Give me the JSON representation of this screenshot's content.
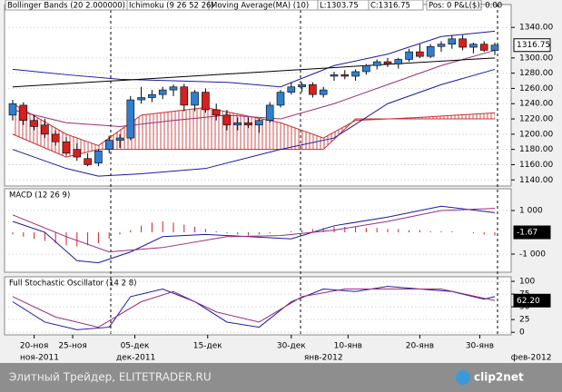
{
  "header": [
    "Bollinger Bands (20 2.000000)",
    "Ichimoku (9 26 52 26)",
    "Moving Average(MA) (10)",
    "L:1303.75",
    "C:1316.75",
    "Pos: 0 P&L($): 0.00"
  ],
  "footer": {
    "source": "Элитный Трейдер, ELITETRADER.RU",
    "logo": "clip2net"
  },
  "x_axis": {
    "ticks": [
      {
        "value": 2,
        "label": "20-ноя"
      },
      {
        "value": 5.6,
        "label": "25-ноя"
      },
      {
        "value": 11.4,
        "label": "05-дек"
      },
      {
        "value": 18.2,
        "label": "15-дек"
      },
      {
        "value": 26,
        "label": "30-дек"
      },
      {
        "value": 31.3,
        "label": "10-янв"
      },
      {
        "value": 38,
        "label": "20-янв"
      },
      {
        "value": 43.6,
        "label": "30-янв"
      }
    ],
    "months": [
      {
        "value": 2.5,
        "label": "ноя-2011"
      },
      {
        "value": 11.5,
        "label": "дек-2011"
      },
      {
        "value": 29,
        "label": "янв-2012"
      },
      {
        "value": 48.4,
        "label": "фев-2012"
      }
    ]
  },
  "chart_data": [
    {
      "type": "candlestick",
      "ylim": [
        1132,
        1370
      ],
      "yticks": [
        {
          "value": 1140,
          "label": "1140.00"
        },
        {
          "value": 1160,
          "label": "1160.00"
        },
        {
          "value": 1180,
          "label": "1180.00"
        },
        {
          "value": 1200,
          "label": "1200.00"
        },
        {
          "value": 1220,
          "label": "1220.00"
        },
        {
          "value": 1240,
          "label": "1240.00"
        },
        {
          "value": 1260,
          "label": "1260.00"
        },
        {
          "value": 1280,
          "label": "1280.00"
        },
        {
          "value": 1300,
          "label": "1300.00"
        },
        {
          "value": 1340,
          "label": "1340.00"
        }
      ],
      "grid": true,
      "up_color": "#2f7fd0",
      "down_color": "#d62020",
      "open": [
        1225,
        1238,
        1218,
        1212,
        1200,
        1190,
        1180,
        1168,
        1162,
        1180,
        1192,
        1195,
        1245,
        1248,
        1252,
        1258,
        1262,
        1238,
        1255,
        1232,
        1225,
        1212,
        1215,
        1212,
        1218,
        1238,
        1255,
        1262,
        1265,
        1252,
        1276,
        1278,
        1276,
        1282,
        1290,
        1295,
        1292,
        1298,
        1308,
        1302,
        1315,
        1318,
        1325,
        1314,
        1318,
        1310
      ],
      "high": [
        1245,
        1242,
        1225,
        1220,
        1205,
        1196,
        1188,
        1175,
        1180,
        1198,
        1200,
        1250,
        1262,
        1258,
        1262,
        1265,
        1266,
        1258,
        1260,
        1240,
        1232,
        1222,
        1222,
        1220,
        1242,
        1258,
        1268,
        1268,
        1268,
        1262,
        1282,
        1284,
        1285,
        1292,
        1298,
        1300,
        1300,
        1312,
        1318,
        1318,
        1322,
        1330,
        1330,
        1320,
        1322,
        1320
      ],
      "low": [
        1218,
        1212,
        1205,
        1195,
        1185,
        1172,
        1165,
        1158,
        1158,
        1175,
        1182,
        1192,
        1240,
        1242,
        1246,
        1250,
        1230,
        1230,
        1228,
        1218,
        1205,
        1205,
        1208,
        1202,
        1215,
        1235,
        1252,
        1255,
        1248,
        1248,
        1270,
        1272,
        1270,
        1278,
        1285,
        1288,
        1286,
        1295,
        1300,
        1300,
        1308,
        1312,
        1310,
        1306,
        1308,
        1303.75
      ],
      "close": [
        1240,
        1218,
        1210,
        1200,
        1190,
        1175,
        1170,
        1160,
        1178,
        1192,
        1195,
        1245,
        1248,
        1252,
        1258,
        1262,
        1238,
        1255,
        1232,
        1225,
        1212,
        1215,
        1212,
        1218,
        1238,
        1255,
        1262,
        1265,
        1252,
        1258,
        1278,
        1276,
        1282,
        1290,
        1295,
        1292,
        1298,
        1308,
        1302,
        1315,
        1318,
        1325,
        1314,
        1318,
        1310,
        1316.75
      ],
      "last": {
        "value": 1316.75,
        "label": "1316.75"
      },
      "cloud": {
        "color": "#c83030",
        "x": [
          0,
          5,
          8,
          12,
          18,
          25,
          29,
          32,
          38,
          45
        ],
        "span_a": [
          1240,
          1200,
          1185,
          1225,
          1235,
          1215,
          1195,
          1218,
          1222,
          1228
        ],
        "span_b": [
          1200,
          1170,
          1180,
          1180,
          1180,
          1180,
          1180,
          1220,
          1220,
          1220
        ]
      },
      "series": [
        {
          "color": "#1a1aa0",
          "x": [
            0,
            5,
            10,
            15,
            20,
            25,
            30,
            35,
            40,
            45
          ],
          "values": [
            1285,
            1278,
            1272,
            1270,
            1268,
            1262,
            1290,
            1305,
            1328,
            1335
          ]
        },
        {
          "color": "#1a1aa0",
          "x": [
            0,
            5,
            8,
            12,
            18,
            25,
            30,
            35,
            40,
            45
          ],
          "values": [
            1180,
            1155,
            1145,
            1148,
            1155,
            1180,
            1195,
            1240,
            1265,
            1285
          ]
        },
        {
          "color": "#9b2d7a",
          "x": [
            0,
            5,
            10,
            15,
            20,
            25,
            30,
            35,
            40,
            45
          ],
          "values": [
            1232,
            1215,
            1210,
            1218,
            1225,
            1220,
            1240,
            1265,
            1290,
            1310
          ]
        },
        {
          "color": "#000000",
          "x": [
            0,
            45
          ],
          "values": [
            1262,
            1300
          ]
        }
      ]
    },
    {
      "type": "macd",
      "title": "MACD (12 26 9)",
      "ylim": [
        -1833,
        2000
      ],
      "yticks": [
        {
          "value": 1000,
          "label": "1 000"
        },
        {
          "value": -1000,
          "label": "-1 000"
        }
      ],
      "grid": true,
      "histogram": {
        "color": "#d62020",
        "values": [
          -100,
          -200,
          -300,
          -400,
          -500,
          -600,
          -650,
          -600,
          -500,
          -300,
          -100,
          100,
          300,
          450,
          500,
          450,
          350,
          250,
          150,
          50,
          -50,
          -100,
          -150,
          -100,
          -50,
          0,
          50,
          100,
          150,
          200,
          250,
          250,
          250,
          200,
          200,
          150,
          150,
          100,
          100,
          50,
          50,
          50,
          0,
          -50,
          -100,
          -150
        ]
      },
      "last": {
        "value": -1.67,
        "label": "-1.67"
      },
      "series": [
        {
          "color": "#1a1aa0",
          "x": [
            0,
            3,
            6,
            8,
            11,
            14,
            18,
            22,
            26,
            30,
            35,
            40,
            45
          ],
          "values": [
            500,
            0,
            -1300,
            -1400,
            -900,
            -200,
            -100,
            -200,
            -300,
            300,
            700,
            1200,
            900
          ]
        },
        {
          "color": "#9b2d7a",
          "x": [
            0,
            5,
            9,
            14,
            20,
            25,
            30,
            35,
            40,
            45
          ],
          "values": [
            800,
            -200,
            -900,
            -700,
            -200,
            -150,
            100,
            500,
            1000,
            1100
          ]
        }
      ]
    },
    {
      "type": "stochastic",
      "title": "Full Stochastic Oscillator (14 2 8)",
      "ylim": [
        -5,
        109
      ],
      "yticks": [
        0,
        25,
        50,
        75,
        100
      ],
      "grid": true,
      "last": {
        "value": 62.2,
        "label": "62.20"
      },
      "series": [
        {
          "color": "#1a1aa0",
          "x": [
            0,
            3,
            6,
            9,
            11,
            14,
            17,
            20,
            23,
            26,
            29,
            32,
            35,
            38,
            41,
            44,
            45
          ],
          "values": [
            60,
            20,
            5,
            10,
            70,
            85,
            60,
            20,
            10,
            60,
            85,
            80,
            90,
            85,
            80,
            65,
            70
          ]
        },
        {
          "color": "#9b2d7a",
          "x": [
            0,
            4,
            8,
            12,
            15,
            19,
            23,
            27,
            31,
            35,
            40,
            45
          ],
          "values": [
            70,
            30,
            10,
            60,
            80,
            40,
            20,
            70,
            85,
            85,
            85,
            62.2
          ]
        }
      ]
    }
  ]
}
